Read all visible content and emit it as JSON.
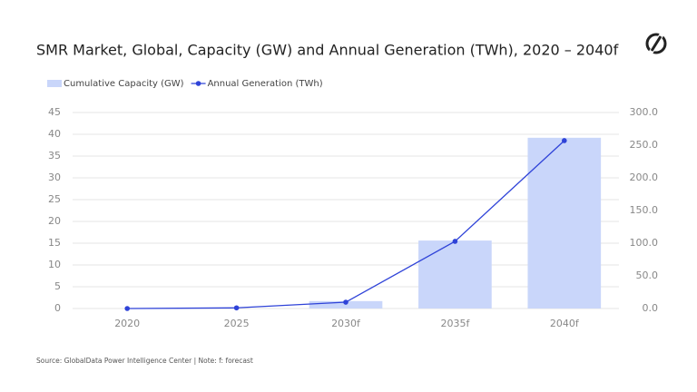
{
  "chart_data": {
    "type": "bar",
    "title": "SMR Market, Global, Capacity (GW) and Annual Generation (TWh), 2020 – 2040f",
    "categories": [
      "2020",
      "2025",
      "2030f",
      "2035f",
      "2040f"
    ],
    "series": [
      {
        "name": "Cumulative Capacity (GW)",
        "type": "bar",
        "color": "#c9d6fa",
        "values": [
          0,
          0,
          1.7,
          15.6,
          39.2
        ]
      },
      {
        "name": "Annual Generation (TWh)",
        "type": "line",
        "axis": "y2",
        "color": "#2f43d8",
        "values": [
          0,
          1,
          9.7,
          102.8,
          257
        ]
      }
    ],
    "ylim": [
      0,
      45
    ],
    "yticks": [
      0,
      5,
      10,
      15,
      20,
      25,
      30,
      35,
      40,
      45
    ],
    "y2lim": [
      0,
      300
    ],
    "y2ticks": [
      {
        "value": 0,
        "label": "0.0"
      },
      {
        "value": 50,
        "label": "50.0"
      },
      {
        "value": 100,
        "label": "100.0"
      },
      {
        "value": 150,
        "label": "150.0"
      },
      {
        "value": 200,
        "label": "200.0"
      },
      {
        "value": 250,
        "label": "250.0"
      },
      {
        "value": 300,
        "label": "300.0"
      }
    ],
    "grid": true,
    "legend": "top-left",
    "source": "Source: GlobalData Power Intelligence Center | Note: f: forecast"
  }
}
